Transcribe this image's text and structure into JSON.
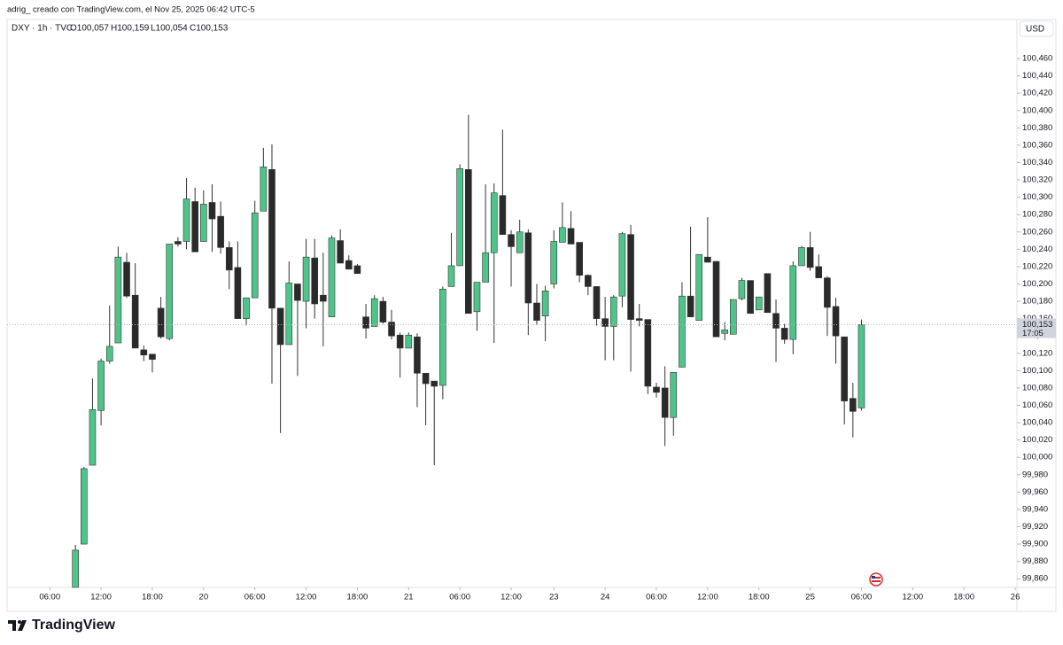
{
  "chart_data": {
    "type": "candlestick",
    "caption": "adrig_ creado con TradingView.com, el Nov 25, 2025 06:42 UTC-5",
    "symbol": "DXY · 1h · TVC",
    "ohlc_labels": [
      "O100,057",
      "H100,159",
      "L100,054",
      "C100,153"
    ],
    "currency": "USD",
    "last_price_label": "100,153",
    "countdown": "17:05",
    "brand": "TradingView",
    "up_color": "#4fc48a",
    "down_color": "#2a2a2a",
    "open": [
      99.85,
      99.9,
      99.991,
      100.054,
      100.111,
      100.132,
      100.225,
      100.187,
      100.124,
      100.119,
      100.172,
      100.137,
      100.249,
      100.249,
      100.295,
      100.249,
      100.294,
      100.278,
      100.242,
      100.219,
      100.16,
      100.184,
      100.284,
      100.332,
      100.172,
      100.13,
      100.2,
      100.18,
      100.23,
      100.187,
      100.162,
      100.25,
      100.227,
      100.221,
      100.162,
      100.151,
      100.18,
      100.156,
      100.141,
      100.126,
      100.139,
      100.097,
      100.088,
      100.083,
      100.197,
      100.221,
      100.332,
      100.168,
      100.202,
      100.236,
      100.302,
      100.257,
      100.236,
      100.259,
      100.178,
      100.163,
      100.2,
      100.248,
      100.264,
      100.248,
      100.21,
      100.197,
      100.16,
      100.151,
      100.186,
      100.257,
      100.16,
      100.159,
      100.081,
      100.08,
      100.046,
      100.104,
      100.186,
      100.158,
      100.231,
      100.226,
      100.143,
      100.142,
      100.183,
      100.204,
      100.17,
      100.212,
      100.166,
      100.149,
      100.136,
      100.221,
      100.242,
      100.22,
      100.207,
      100.174,
      100.139,
      100.068,
      100.057
    ],
    "high": [
      99.899,
      99.989,
      100.091,
      100.114,
      100.175,
      100.243,
      100.236,
      100.224,
      100.129,
      100.119,
      100.185,
      100.246,
      100.254,
      100.322,
      100.311,
      100.308,
      100.315,
      100.295,
      100.249,
      100.249,
      100.184,
      100.296,
      100.357,
      100.361,
      100.172,
      100.226,
      100.2,
      100.252,
      100.252,
      100.236,
      100.256,
      100.263,
      100.233,
      100.223,
      100.177,
      100.187,
      100.185,
      100.17,
      100.144,
      100.144,
      100.143,
      100.097,
      100.088,
      100.197,
      100.259,
      100.338,
      100.395,
      100.202,
      100.315,
      100.316,
      100.378,
      100.262,
      100.274,
      100.263,
      100.2,
      100.198,
      100.262,
      100.294,
      100.284,
      100.248,
      100.211,
      100.197,
      100.185,
      100.187,
      100.26,
      100.268,
      100.177,
      100.159,
      100.086,
      100.105,
      100.098,
      100.202,
      100.266,
      100.234,
      100.277,
      100.226,
      100.156,
      100.182,
      100.207,
      100.204,
      100.185,
      100.212,
      100.182,
      100.154,
      100.226,
      100.244,
      100.26,
      100.234,
      100.209,
      100.184,
      100.139,
      100.086,
      100.159
    ],
    "low": [
      99.85,
      99.9,
      99.991,
      100.037,
      100.108,
      100.132,
      100.184,
      100.126,
      100.111,
      100.098,
      100.137,
      100.135,
      100.243,
      100.24,
      100.237,
      100.249,
      100.237,
      100.235,
      100.194,
      100.16,
      100.152,
      100.184,
      100.284,
      100.085,
      100.028,
      100.13,
      100.094,
      100.149,
      100.16,
      100.128,
      100.162,
      100.224,
      100.217,
      100.212,
      100.137,
      100.151,
      100.154,
      100.136,
      100.092,
      100.126,
      100.058,
      100.037,
      99.991,
      100.067,
      100.197,
      100.221,
      100.166,
      100.146,
      100.202,
      100.132,
      100.257,
      100.197,
      100.236,
      100.141,
      100.153,
      100.134,
      100.195,
      100.248,
      100.246,
      100.202,
      100.187,
      100.152,
      100.112,
      100.112,
      100.173,
      100.099,
      100.151,
      100.073,
      100.069,
      100.013,
      100.025,
      100.104,
      100.162,
      100.158,
      100.225,
      100.139,
      100.135,
      100.142,
      100.181,
      100.166,
      100.17,
      100.167,
      100.11,
      100.131,
      100.119,
      100.221,
      100.215,
      100.207,
      100.14,
      100.108,
      100.038,
      100.023,
      100.054
    ],
    "close": [
      99.893,
      99.987,
      100.055,
      100.111,
      100.128,
      100.231,
      100.186,
      100.126,
      100.118,
      100.113,
      100.139,
      100.246,
      100.246,
      100.298,
      100.237,
      100.292,
      100.275,
      100.242,
      100.216,
      100.16,
      100.184,
      100.282,
      100.335,
      100.172,
      100.13,
      100.201,
      100.181,
      100.231,
      100.177,
      100.18,
      100.253,
      100.224,
      100.217,
      100.212,
      100.149,
      100.183,
      100.156,
      100.14,
      100.126,
      100.141,
      100.097,
      100.085,
      100.082,
      100.194,
      100.221,
      100.333,
      100.166,
      100.202,
      100.236,
      100.305,
      100.257,
      100.243,
      100.26,
      100.178,
      100.158,
      100.192,
      100.249,
      100.265,
      100.246,
      100.21,
      100.197,
      100.16,
      100.151,
      100.185,
      100.258,
      100.159,
      100.158,
      100.082,
      100.075,
      100.046,
      100.098,
      100.186,
      100.162,
      100.234,
      100.225,
      100.139,
      100.147,
      100.182,
      100.204,
      100.166,
      100.185,
      100.167,
      100.149,
      100.136,
      100.221,
      100.242,
      100.219,
      100.207,
      100.173,
      100.14,
      100.065,
      100.053,
      100.153
    ],
    "xlim": [
      -8,
      110.2
    ],
    "xticks": [
      {
        "value": -3,
        "label": "06:00"
      },
      {
        "value": 3,
        "label": "12:00"
      },
      {
        "value": 9,
        "label": "18:00"
      },
      {
        "value": 15,
        "label": "20"
      },
      {
        "value": 21,
        "label": "06:00"
      },
      {
        "value": 27,
        "label": "12:00"
      },
      {
        "value": 33,
        "label": "18:00"
      },
      {
        "value": 39,
        "label": "21"
      },
      {
        "value": 45,
        "label": "06:00"
      },
      {
        "value": 51,
        "label": "12:00"
      },
      {
        "value": 56,
        "label": "23"
      },
      {
        "value": 62,
        "label": "24"
      },
      {
        "value": 68,
        "label": "06:00"
      },
      {
        "value": 74,
        "label": "12:00"
      },
      {
        "value": 80,
        "label": "18:00"
      },
      {
        "value": 86,
        "label": "25"
      },
      {
        "value": 92,
        "label": "06:00"
      },
      {
        "value": 98,
        "label": "12:00"
      },
      {
        "value": 104,
        "label": "18:00"
      },
      {
        "value": 110,
        "label": "26"
      }
    ],
    "ylim": [
      99.85,
      100.505
    ],
    "yticks": [
      {
        "value": 99.86,
        "label": "99,860"
      },
      {
        "value": 99.88,
        "label": "99,880"
      },
      {
        "value": 99.9,
        "label": "99,900"
      },
      {
        "value": 99.92,
        "label": "99,920"
      },
      {
        "value": 99.94,
        "label": "99,940"
      },
      {
        "value": 99.96,
        "label": "99,960"
      },
      {
        "value": 99.98,
        "label": "99,980"
      },
      {
        "value": 100.0,
        "label": "100,000"
      },
      {
        "value": 100.02,
        "label": "100,020"
      },
      {
        "value": 100.04,
        "label": "100,040"
      },
      {
        "value": 100.06,
        "label": "100,060"
      },
      {
        "value": 100.08,
        "label": "100,080"
      },
      {
        "value": 100.1,
        "label": "100,100"
      },
      {
        "value": 100.12,
        "label": "100,120"
      },
      {
        "value": 100.14,
        "label": "100,140"
      },
      {
        "value": 100.16,
        "label": "100,160"
      },
      {
        "value": 100.18,
        "label": "100,180"
      },
      {
        "value": 100.2,
        "label": "100,200"
      },
      {
        "value": 100.22,
        "label": "100,220"
      },
      {
        "value": 100.24,
        "label": "100,240"
      },
      {
        "value": 100.26,
        "label": "100,260"
      },
      {
        "value": 100.28,
        "label": "100,280"
      },
      {
        "value": 100.3,
        "label": "100,300"
      },
      {
        "value": 100.32,
        "label": "100,320"
      },
      {
        "value": 100.34,
        "label": "100,340"
      },
      {
        "value": 100.36,
        "label": "100,360"
      },
      {
        "value": 100.38,
        "label": "100,380"
      },
      {
        "value": 100.4,
        "label": "100,400"
      },
      {
        "value": 100.42,
        "label": "100,420"
      },
      {
        "value": 100.44,
        "label": "100,440"
      },
      {
        "value": 100.46,
        "label": "100,460"
      }
    ],
    "grid": false
  }
}
